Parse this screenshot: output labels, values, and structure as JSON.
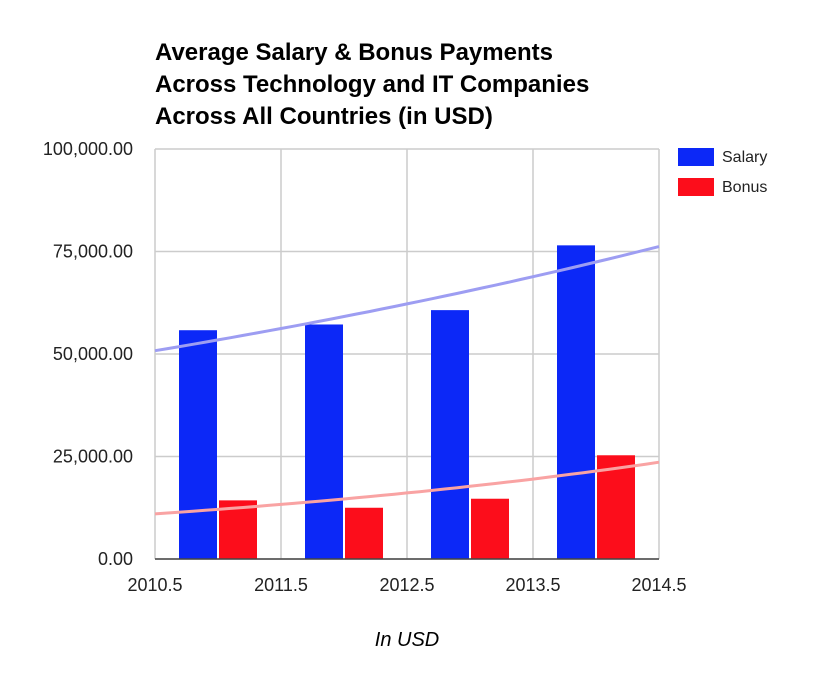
{
  "chart_data": {
    "type": "bar",
    "title_lines": [
      "Average Salary & Bonus Payments",
      "Across Technology and IT Companies",
      "Across All Countries (in USD)"
    ],
    "xlabel": "In USD",
    "ylabel": "",
    "x_ticks": [
      "2010.5",
      "2011.5",
      "2012.5",
      "2013.5",
      "2014.5"
    ],
    "y_ticks": [
      "0.00",
      "25,000.00",
      "50,000.00",
      "75,000.00",
      "100,000.00"
    ],
    "xlim": [
      2010.5,
      2014.5
    ],
    "ylim": [
      0,
      100000
    ],
    "x": [
      2011,
      2012,
      2013,
      2014
    ],
    "series": [
      {
        "name": "Salary",
        "color": "#0c28f7",
        "values": [
          55800,
          57200,
          60700,
          76500
        ]
      },
      {
        "name": "Bonus",
        "color": "#fc0d1b",
        "values": [
          14300,
          12500,
          14700,
          25300
        ]
      }
    ],
    "trendlines": [
      {
        "series": "Salary",
        "color": "#9d9df2",
        "values_at_xlim": [
          50800,
          76200
        ]
      },
      {
        "series": "Bonus",
        "color": "#f9a3a3",
        "values_at_xlim": [
          11000,
          23600
        ]
      }
    ],
    "grid": true,
    "legend_position": "right"
  }
}
